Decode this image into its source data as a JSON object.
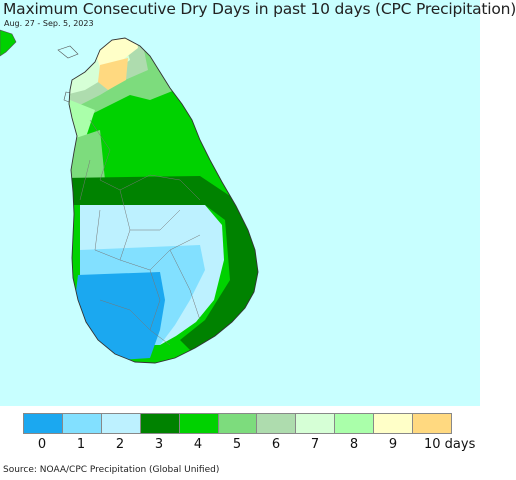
{
  "header": {
    "title": "Maximum Consecutive Dry Days in past 10 days (CPC Precipitation)",
    "date_range": "Aug. 27 - Sep. 5, 2023"
  },
  "legend": {
    "bins": [
      {
        "label": "0",
        "color": "#1ba8f0"
      },
      {
        "label": "1",
        "color": "#82e0ff"
      },
      {
        "label": "2",
        "color": "#bdf1ff"
      },
      {
        "label": "3",
        "color": "#008200"
      },
      {
        "label": "4",
        "color": "#00d200"
      },
      {
        "label": "5",
        "color": "#7ddc7d"
      },
      {
        "label": "6",
        "color": "#aedcae"
      },
      {
        "label": "7",
        "color": "#d6ffd6"
      },
      {
        "label": "8",
        "color": "#aaffaa"
      },
      {
        "label": "9",
        "color": "#ffffc8"
      },
      {
        "label": "10 days",
        "color": "#ffd980"
      }
    ]
  },
  "map": {
    "ocean_color": "#c8ffff",
    "region": "Sri Lanka"
  },
  "footer": {
    "source": "Source: NOAA/CPC Precipitation (Global Unified)"
  }
}
